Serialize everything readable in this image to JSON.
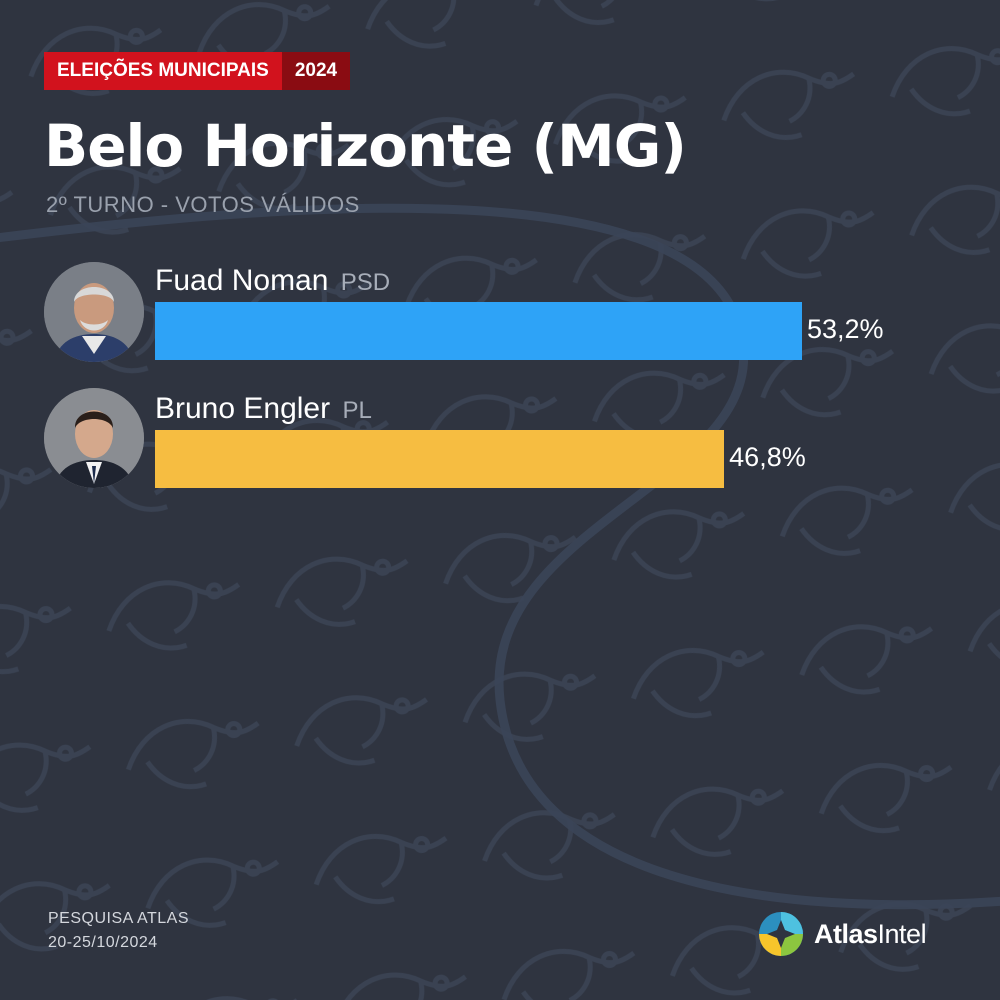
{
  "header": {
    "badge_label": "ELEIÇÕES MUNICIPAIS",
    "badge_year": "2024",
    "title": "Belo Horizonte (MG)",
    "subtitle": "2º TURNO - VOTOS VÁLIDOS"
  },
  "chart_data": {
    "type": "bar",
    "orientation": "horizontal",
    "title": "Belo Horizonte (MG)",
    "subtitle": "2º TURNO - VOTOS VÁLIDOS",
    "categories": [
      "Fuad Noman",
      "Bruno Engler"
    ],
    "parties": [
      "PSD",
      "PL"
    ],
    "values": [
      53.2,
      46.8
    ],
    "value_labels": [
      "53,2%",
      "46,8%"
    ],
    "colors": [
      "#2ea3f7",
      "#f6bd41"
    ],
    "xlim": [
      0,
      100
    ],
    "grid": false,
    "legend": "none"
  },
  "candidates": [
    {
      "name": "Fuad Noman",
      "party": "PSD",
      "value_label": "53,2%",
      "color": "#2ea3f7",
      "avatar_icon": "candidate-photo-icon"
    },
    {
      "name": "Bruno Engler",
      "party": "PL",
      "value_label": "46,8%",
      "color": "#f6bd41",
      "avatar_icon": "candidate-photo-icon"
    }
  ],
  "footer": {
    "source_line1": "PESQUISA ATLAS",
    "source_line2": "20-25/10/2024",
    "logo_bold": "Atlas",
    "logo_thin": "Intel",
    "logo_icon": "atlasintel-logo-icon"
  }
}
